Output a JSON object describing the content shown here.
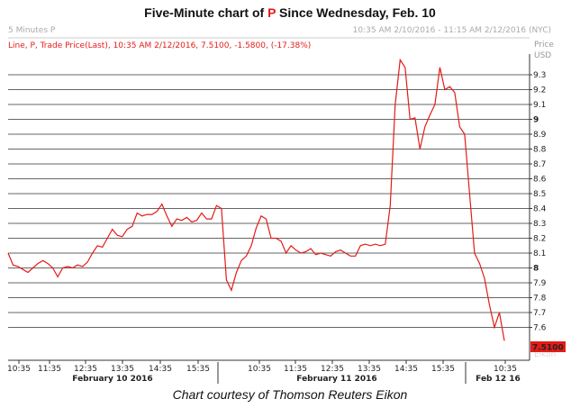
{
  "title": {
    "prefix": "Five-Minute chart of ",
    "ticker": "P",
    "suffix": " Since Wednesday, Feb. 10"
  },
  "caption": "Chart courtesy of Thomson Reuters Eikon",
  "header": {
    "series_tag": "5 Minutes P",
    "range": "10:35 AM 2/10/2016 - 11:15 AM 2/12/2016 (NYC)",
    "legend": "Line, P, Trade Price(Last), 10:35 AM 2/12/2016, 7.5100, -1.5800, (-17.38%)",
    "axis_unit_1": "Price",
    "axis_unit_2": "USD",
    "last_price_label": "7.5100",
    "watermark": "Eikon"
  },
  "colors": {
    "line": "#e41b17",
    "grid": "#333333",
    "badge": "#e41b17"
  },
  "chart_data": {
    "type": "line",
    "title": "Five-Minute chart of P Since Wednesday, Feb. 10",
    "xlabel": "",
    "ylabel": "Price USD",
    "ylim": [
      7.5,
      9.4
    ],
    "y_ticks": [
      "9.3",
      "9.2",
      "9.1",
      "9",
      "8.9",
      "8.8",
      "8.7",
      "8.6",
      "8.5",
      "8.4",
      "8.3",
      "8.2",
      "8.1",
      "8",
      "7.9",
      "7.8",
      "7.7",
      "7.6"
    ],
    "y_ticks_bold": [
      "9",
      "8"
    ],
    "grid": true,
    "x_tick_labels": [
      "10:35",
      "11:35",
      "12:35",
      "13:35",
      "14:35",
      "15:35",
      "10:35",
      "11:35",
      "12:35",
      "13:35",
      "14:35",
      "15:35",
      "10:35"
    ],
    "x_date_labels": [
      "February 10 2016",
      "February 11 2016",
      "Feb 12 16"
    ],
    "series": [
      {
        "values": [
          8.1,
          8.02,
          8.01,
          7.99,
          7.97,
          8.0,
          8.03,
          8.05,
          8.03,
          8.0,
          7.94,
          8.0,
          8.01,
          8.0,
          8.02,
          8.01,
          8.04,
          8.1,
          8.15,
          8.14,
          8.2,
          8.26,
          8.22,
          8.21,
          8.26,
          8.28,
          8.37,
          8.35,
          8.36,
          8.36,
          8.38,
          8.43,
          8.35,
          8.28,
          8.33,
          8.32,
          8.34,
          8.31,
          8.32,
          8.37,
          8.33,
          8.33,
          8.42,
          8.4,
          7.92,
          7.85,
          7.97,
          8.05,
          8.08,
          8.15,
          8.27,
          8.35,
          8.33,
          8.2,
          8.2,
          8.18,
          8.1,
          8.15,
          8.12,
          8.1,
          8.11,
          8.13,
          8.09,
          8.1,
          8.09,
          8.08,
          8.11,
          8.12,
          8.1,
          8.08,
          8.08,
          8.15,
          8.16,
          8.15,
          8.16,
          8.15,
          8.16,
          8.42,
          9.1,
          9.4,
          9.35,
          9.0,
          9.01,
          8.8,
          8.95,
          9.03,
          9.1,
          9.35,
          9.2,
          9.22,
          9.18,
          8.95,
          8.9,
          8.5,
          8.1,
          8.03,
          7.93,
          7.75,
          7.6,
          7.7,
          7.51
        ]
      }
    ]
  }
}
